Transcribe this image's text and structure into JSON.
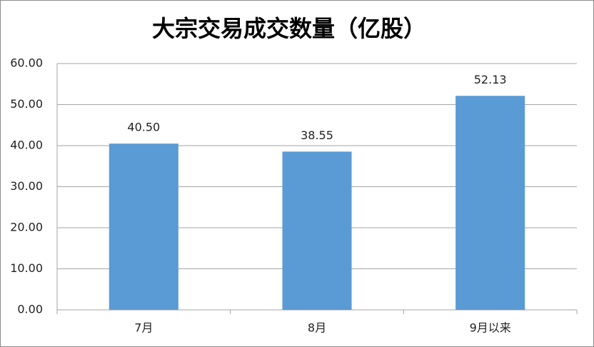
{
  "chart_data": {
    "type": "bar",
    "title": "大宗交易成交数量（亿股）",
    "categories": [
      "7月",
      "8月",
      "9月以来"
    ],
    "values": [
      40.5,
      38.55,
      52.13
    ],
    "value_labels": [
      "40.50",
      "38.55",
      "52.13"
    ],
    "color": "#5b9bd5",
    "ylim": [
      0,
      60
    ],
    "yticks": [
      {
        "value": 0,
        "label": "0.00"
      },
      {
        "value": 10,
        "label": "10.00"
      },
      {
        "value": 20,
        "label": "20.00"
      },
      {
        "value": 30,
        "label": "30.00"
      },
      {
        "value": 40,
        "label": "40.00"
      },
      {
        "value": 50,
        "label": "50.00"
      },
      {
        "value": 60,
        "label": "60.00"
      }
    ],
    "grid": true
  }
}
